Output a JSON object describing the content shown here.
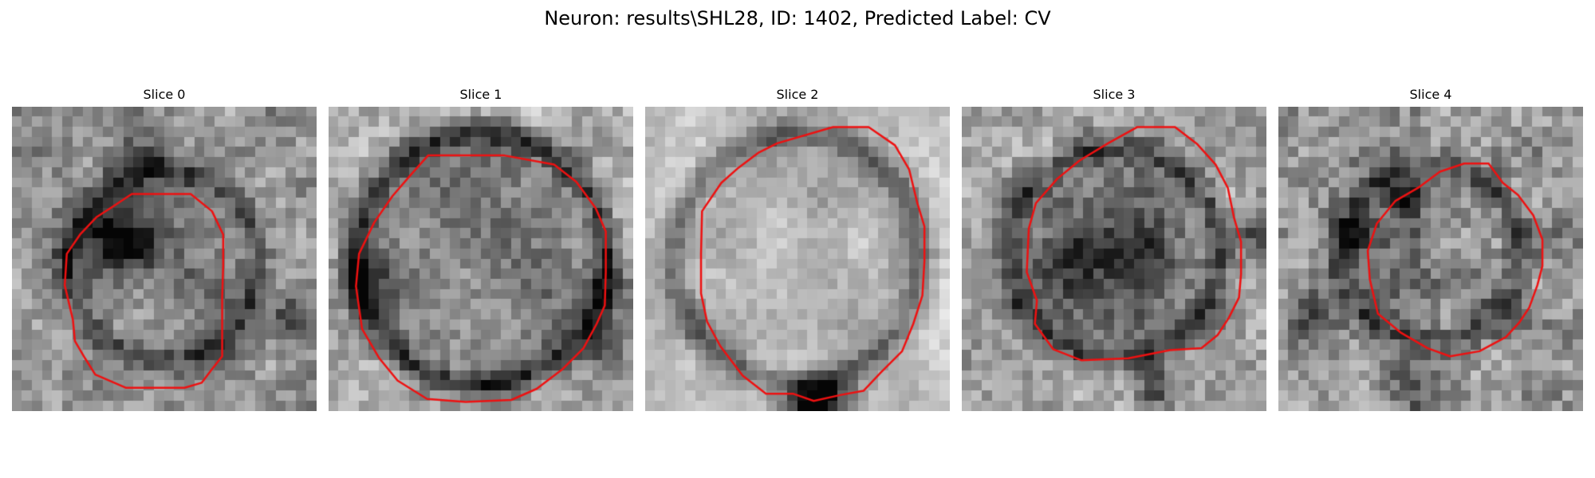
{
  "figure": {
    "title": "Neuron: results\\SHL28, ID: 1402, Predicted Label: CV"
  },
  "slices": [
    {
      "title": "Slice 0"
    },
    {
      "title": "Slice 1"
    },
    {
      "title": "Slice 2"
    },
    {
      "title": "Slice 3"
    },
    {
      "title": "Slice 4"
    }
  ],
  "colors": {
    "contour": "#ee1111",
    "background": "#ffffff"
  },
  "image": {
    "colormap": "gray",
    "grid": "30x30"
  }
}
